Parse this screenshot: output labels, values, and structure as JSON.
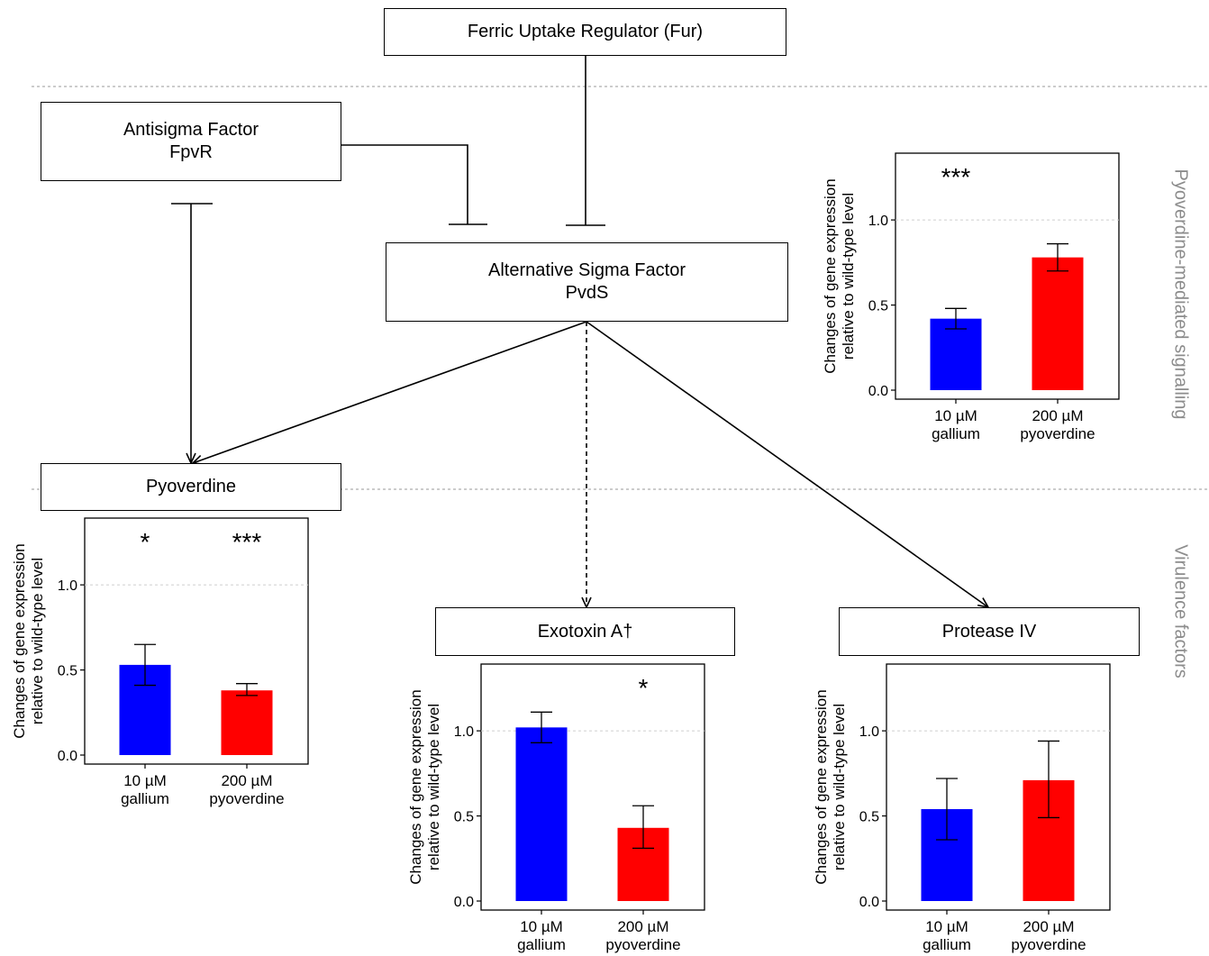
{
  "nodes": {
    "fur": {
      "label": "Ferric Uptake Regulator (Fur)"
    },
    "fpvr": {
      "line1": "Antisigma Factor",
      "line2": "FpvR"
    },
    "pvds": {
      "line1": "Alternative Sigma Factor",
      "line2": "PvdS"
    },
    "pyoverdine": {
      "label": "Pyoverdine"
    },
    "exotoxin": {
      "label": "Exotoxin A†"
    },
    "protease": {
      "label": "Protease IV"
    }
  },
  "side_labels": {
    "signalling": "Pyoverdine-mediated signalling",
    "virulence": "Virulence factors"
  },
  "colors": {
    "gallium": "#0000ff",
    "pyoverdine": "#ff0000",
    "divider": "#999999",
    "side_label": "#8c8c8c"
  },
  "chart_data": [
    {
      "id": "pvds",
      "type": "bar",
      "categories": [
        [
          "10 µM",
          "gallium"
        ],
        [
          "200 µM",
          "pyoverdine"
        ]
      ],
      "values": [
        0.42,
        0.78
      ],
      "error_bars": [
        [
          0.36,
          0.48
        ],
        [
          0.7,
          0.86
        ]
      ],
      "significance": [
        "***",
        ""
      ],
      "ylabel": [
        "Changes of gene expression",
        "relative to wild-type level"
      ],
      "yticks": [
        "0.0",
        "0.5",
        "1.0"
      ],
      "ylim": [
        0,
        1.35
      ],
      "grid": "dashed at 1.0"
    },
    {
      "id": "pyoverdine",
      "type": "bar",
      "categories": [
        [
          "10 µM",
          "gallium"
        ],
        [
          "200 µM",
          "pyoverdine"
        ]
      ],
      "values": [
        0.53,
        0.38
      ],
      "error_bars": [
        [
          0.41,
          0.65
        ],
        [
          0.35,
          0.42
        ]
      ],
      "significance": [
        "*",
        "***"
      ],
      "ylabel": [
        "Changes of gene expression",
        "relative to wild-type level"
      ],
      "yticks": [
        "0.0",
        "0.5",
        "1.0"
      ],
      "ylim": [
        0,
        1.35
      ],
      "grid": "dashed at 1.0"
    },
    {
      "id": "exotoxin",
      "type": "bar",
      "categories": [
        [
          "10 µM",
          "gallium"
        ],
        [
          "200 µM",
          "pyoverdine"
        ]
      ],
      "values": [
        1.02,
        0.43
      ],
      "error_bars": [
        [
          0.93,
          1.11
        ],
        [
          0.31,
          0.56
        ]
      ],
      "significance": [
        "",
        "*"
      ],
      "ylabel": [
        "Changes of gene expression",
        "relative to wild-type level"
      ],
      "yticks": [
        "0.0",
        "0.5",
        "1.0"
      ],
      "ylim": [
        0,
        1.35
      ],
      "grid": "dashed at 1.0"
    },
    {
      "id": "protease",
      "type": "bar",
      "categories": [
        [
          "10 µM",
          "gallium"
        ],
        [
          "200 µM",
          "pyoverdine"
        ]
      ],
      "values": [
        0.54,
        0.71
      ],
      "error_bars": [
        [
          0.36,
          0.72
        ],
        [
          0.49,
          0.94
        ]
      ],
      "significance": [
        "",
        ""
      ],
      "ylabel": [
        "Changes of gene expression",
        "relative to wild-type level"
      ],
      "yticks": [
        "0.0",
        "0.5",
        "1.0"
      ],
      "ylim": [
        0,
        1.35
      ],
      "grid": "dashed at 1.0"
    }
  ]
}
